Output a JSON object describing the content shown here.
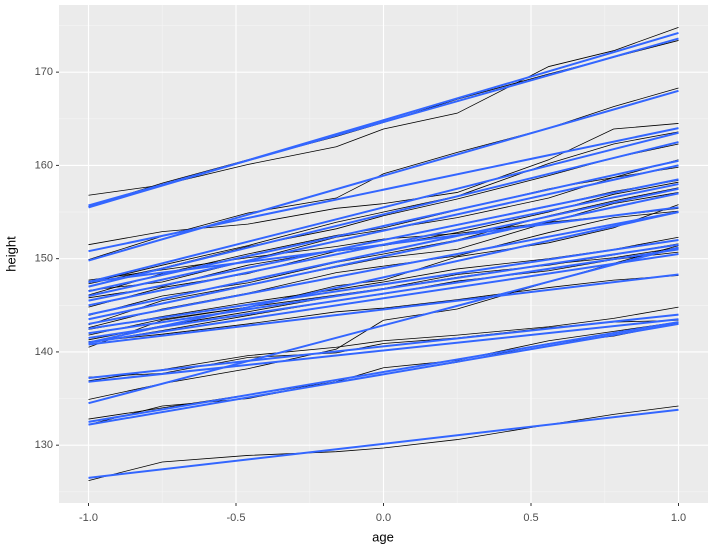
{
  "chart_data": {
    "type": "line",
    "x_label": "age",
    "y_label": "height",
    "x": [
      -1,
      -0.75,
      -0.46,
      -0.16,
      0,
      0.25,
      0.56,
      0.78,
      1
    ],
    "fit_x": [
      -1,
      1
    ],
    "line_color": "#000000",
    "fit_color": "#3366ff",
    "xlim": [
      -1.1,
      1.1
    ],
    "ylim": [
      123.8,
      177.2
    ],
    "xticks": [
      {
        "value": -1,
        "label": "-1.0"
      },
      {
        "value": -0.5,
        "label": "-0.5"
      },
      {
        "value": 0,
        "label": "0.0"
      },
      {
        "value": 0.5,
        "label": "0.5"
      },
      {
        "value": 1,
        "label": "1.0"
      }
    ],
    "yticks": [
      130,
      140,
      150,
      160,
      170
    ],
    "xminor": [
      -0.75,
      -0.25,
      0.25,
      0.75
    ],
    "yminor": [
      125,
      135,
      145,
      155,
      165,
      175
    ],
    "grid": true,
    "series": [
      {
        "values": [
          156.8,
          157.9,
          160.1,
          162.0,
          163.9,
          165.6,
          170.6,
          172.3,
          174.8
        ],
        "fit": [
          155.5,
          174.2
        ]
      },
      {
        "values": [
          155.6,
          158.1,
          160.6,
          163.1,
          164.6,
          167.1,
          169.8,
          171.6,
          173.4
        ],
        "fit": [
          155.7,
          173.6
        ]
      },
      {
        "values": [
          149.9,
          152.4,
          154.9,
          156.5,
          159.1,
          161.4,
          164.0,
          166.3,
          168.3
        ],
        "fit": [
          149.8,
          168.0
        ]
      },
      {
        "values": [
          151.5,
          152.9,
          153.7,
          155.4,
          155.9,
          157.1,
          160.6,
          163.9,
          164.5
        ],
        "fit": [
          150.8,
          164.0
        ]
      },
      {
        "values": [
          147.4,
          149.3,
          151.4,
          153.9,
          155.0,
          156.7,
          160.2,
          162.3,
          163.6
        ],
        "fit": [
          147.5,
          163.5
        ]
      },
      {
        "values": [
          147.3,
          149.0,
          151.3,
          153.2,
          154.6,
          156.4,
          158.9,
          160.8,
          162.3
        ],
        "fit": [
          147.0,
          162.5
        ]
      },
      {
        "values": [
          146.1,
          148.4,
          150.5,
          152.5,
          153.3,
          155.2,
          157.5,
          158.7,
          160.6
        ],
        "fit": [
          146.5,
          160.5
        ]
      },
      {
        "values": [
          146.6,
          147.5,
          149.8,
          152.3,
          153.1,
          154.4,
          156.5,
          158.7,
          159.8
        ],
        "fit": [
          146.0,
          160.0
        ]
      },
      {
        "values": [
          145.8,
          147.0,
          149.3,
          150.9,
          152.0,
          153.6,
          155.6,
          157.2,
          158.4
        ],
        "fit": [
          145.5,
          158.5
        ]
      },
      {
        "values": [
          144.8,
          146.9,
          148.4,
          150.8,
          151.4,
          152.8,
          155.0,
          156.9,
          158.2
        ],
        "fit": [
          145.0,
          158.0
        ]
      },
      {
        "values": [
          143.9,
          146.0,
          147.4,
          149.6,
          150.5,
          152.0,
          154.6,
          156.2,
          157.6
        ],
        "fit": [
          144.0,
          157.5
        ]
      },
      {
        "values": [
          142.9,
          145.5,
          147.2,
          149.1,
          150.1,
          151.0,
          153.9,
          155.9,
          157.1
        ],
        "fit": [
          143.5,
          157.0
        ]
      },
      {
        "values": [
          142.6,
          144.6,
          146.3,
          148.5,
          149.2,
          150.3,
          152.8,
          154.4,
          155.1
        ],
        "fit": [
          143.0,
          155.0
        ]
      },
      {
        "values": [
          142.4,
          143.8,
          145.3,
          146.7,
          147.5,
          148.9,
          150.0,
          151.0,
          152.3
        ],
        "fit": [
          142.5,
          152.0
        ]
      },
      {
        "values": [
          141.8,
          143.5,
          144.8,
          146.1,
          146.8,
          148.3,
          149.3,
          150.4,
          151.6
        ],
        "fit": [
          142.0,
          151.5
        ]
      },
      {
        "values": [
          141.3,
          142.8,
          144.3,
          146.0,
          146.8,
          148.0,
          149.4,
          150.1,
          151.2
        ],
        "fit": [
          141.5,
          151.0
        ]
      },
      {
        "values": [
          141.0,
          142.3,
          143.9,
          145.5,
          146.2,
          147.6,
          148.7,
          149.9,
          150.7
        ],
        "fit": [
          141.0,
          150.5
        ]
      },
      {
        "values": [
          141.1,
          141.9,
          143.0,
          144.3,
          144.7,
          145.6,
          146.9,
          147.7,
          148.2
        ],
        "fit": [
          140.8,
          148.3
        ]
      },
      {
        "values": [
          140.5,
          143.4,
          144.8,
          147.1,
          147.7,
          150.2,
          151.7,
          153.3,
          155.8
        ],
        "fit": [
          141.0,
          155.0
        ]
      },
      {
        "values": [
          136.9,
          138.1,
          139.6,
          140.5,
          141.2,
          141.8,
          142.7,
          143.6,
          144.8
        ],
        "fit": [
          137.2,
          144.0
        ]
      },
      {
        "values": [
          137.3,
          137.7,
          139.4,
          139.9,
          140.9,
          141.5,
          142.6,
          143.2,
          143.4
        ],
        "fit": [
          136.8,
          143.5
        ]
      },
      {
        "values": [
          134.9,
          136.6,
          138.2,
          140.3,
          143.4,
          144.6,
          147.5,
          149.5,
          151.4
        ],
        "fit": [
          134.5,
          151.2
        ]
      },
      {
        "values": [
          132.8,
          134.0,
          135.4,
          136.8,
          138.3,
          139.1,
          141.2,
          142.2,
          143.2
        ],
        "fit": [
          132.5,
          143.2
        ]
      },
      {
        "values": [
          132.2,
          134.2,
          135.0,
          136.8,
          137.6,
          138.9,
          140.9,
          141.7,
          143.1
        ],
        "fit": [
          132.2,
          143.0
        ]
      },
      {
        "values": [
          126.2,
          128.2,
          128.9,
          129.3,
          129.7,
          130.6,
          132.2,
          133.3,
          134.2
        ],
        "fit": [
          126.5,
          133.8
        ]
      },
      {
        "values": [
          147.7,
          148.8,
          150.1,
          151.3,
          152.1,
          152.7,
          153.9,
          154.6,
          155.4
        ],
        "fit": [
          147.5,
          155.5
        ]
      }
    ]
  }
}
